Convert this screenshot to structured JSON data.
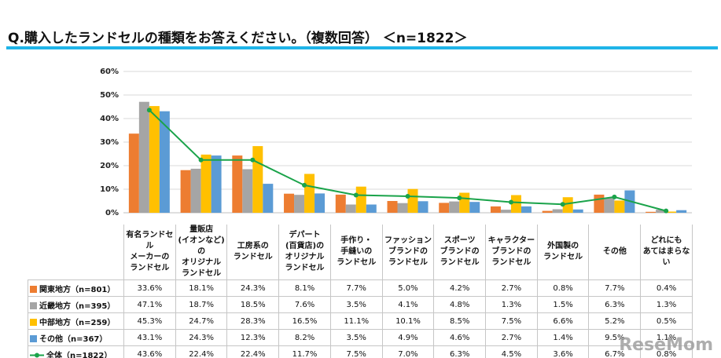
{
  "watermark": "ReseMom",
  "chart_data": {
    "type": "bar",
    "title": "Q.購入したランドセルの種類をお答えください。（複数回答） ＜n=1822＞",
    "categories": [
      "有名ランドセル\nメーカーの\nランドセル",
      "量販店\n(イオンなど)の\nオリジナル\nランドセル",
      "工房系の\nランドセル",
      "デパート\n(百貨店)の\nオリジナル\nランドセル",
      "手作り・\n手縫いの\nランドセル",
      "ファッション\nブランドの\nランドセル",
      "スポーツ\nブランドの\nランドセル",
      "キャラクター\nブランドの\nランドセル",
      "外国製の\nランドセル",
      "その他",
      "どれにも\nあてはまらない"
    ],
    "ylim": [
      0,
      60
    ],
    "yticks": [
      {
        "value": 0,
        "label": "0%"
      },
      {
        "value": 10,
        "label": "10%"
      },
      {
        "value": 20,
        "label": "20%"
      },
      {
        "value": 30,
        "label": "30%"
      },
      {
        "value": 40,
        "label": "40%"
      },
      {
        "value": 50,
        "label": "50%"
      },
      {
        "value": 60,
        "label": "60%"
      }
    ],
    "grid": true,
    "series": [
      {
        "name": "関東地方（n=801）",
        "color": "#ed7d31",
        "values": [
          33.6,
          18.1,
          24.3,
          8.1,
          7.7,
          5.0,
          4.2,
          2.7,
          0.8,
          7.7,
          0.4
        ],
        "value_labels": [
          "33.6%",
          "18.1%",
          "24.3%",
          "8.1%",
          "7.7%",
          "5.0%",
          "4.2%",
          "2.7%",
          "0.8%",
          "7.7%",
          "0.4%"
        ]
      },
      {
        "name": "近畿地方（n=395）",
        "color": "#a5a5a5",
        "values": [
          47.1,
          18.7,
          18.5,
          7.6,
          3.5,
          4.1,
          4.8,
          1.3,
          1.5,
          6.3,
          1.3
        ],
        "value_labels": [
          "47.1%",
          "18.7%",
          "18.5%",
          "7.6%",
          "3.5%",
          "4.1%",
          "4.8%",
          "1.3%",
          "1.5%",
          "6.3%",
          "1.3%"
        ]
      },
      {
        "name": "中部地方（n=259）",
        "color": "#ffc000",
        "values": [
          45.3,
          24.7,
          28.3,
          16.5,
          11.1,
          10.1,
          8.5,
          7.5,
          6.6,
          5.2,
          0.5
        ],
        "value_labels": [
          "45.3%",
          "24.7%",
          "28.3%",
          "16.5%",
          "11.1%",
          "10.1%",
          "8.5%",
          "7.5%",
          "6.6%",
          "5.2%",
          "0.5%"
        ]
      },
      {
        "name": "その他（n=367）",
        "color": "#5b9bd5",
        "values": [
          43.1,
          24.3,
          12.3,
          8.2,
          3.5,
          4.9,
          4.6,
          2.7,
          1.4,
          9.5,
          1.1
        ],
        "value_labels": [
          "43.1%",
          "24.3%",
          "12.3%",
          "8.2%",
          "3.5%",
          "4.9%",
          "4.6%",
          "2.7%",
          "1.4%",
          "9.5%",
          "1.1%"
        ]
      },
      {
        "name": "全体（n=1822）",
        "type": "line",
        "color": "#1aa34a",
        "values": [
          43.6,
          22.4,
          22.4,
          11.7,
          7.5,
          7.0,
          6.3,
          4.5,
          3.6,
          6.7,
          0.8
        ],
        "value_labels": [
          "43.6%",
          "22.4%",
          "22.4%",
          "11.7%",
          "7.5%",
          "7.0%",
          "6.3%",
          "4.5%",
          "3.6%",
          "6.7%",
          "0.8%"
        ]
      }
    ]
  }
}
